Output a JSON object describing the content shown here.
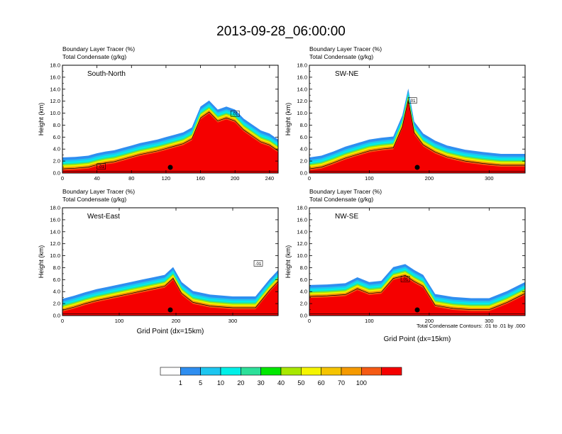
{
  "title": "2013-09-28_06:00:00",
  "colors": [
    "#ffffff",
    "#2f8ef0",
    "#1dc6f0",
    "#00f0e8",
    "#2ce09a",
    "#00e800",
    "#a8e800",
    "#f5f500",
    "#f5c400",
    "#f59a00",
    "#f55a14",
    "#f50000"
  ],
  "colorbar": {
    "levels": [
      "1",
      "5",
      "10",
      "20",
      "30",
      "40",
      "50",
      "60",
      "70",
      "100"
    ]
  },
  "contour_note": "Total Condensate Contours: .01 to .01 by .000",
  "chart_data": [
    {
      "type": "heatmap",
      "panel_label": "South-North",
      "title_line1": "Boundary Layer Tracer   (%)",
      "title_line2": "Total Condensate   (g/kg)",
      "ylabel": "Height (km)",
      "xlabel": "",
      "xlim": [
        0,
        250
      ],
      "ylim": [
        0,
        18
      ],
      "xticks": [
        "0",
        "40",
        "80",
        "120",
        "160",
        "200",
        "240"
      ],
      "xtick_values": [
        0,
        40,
        80,
        120,
        160,
        200,
        240
      ],
      "yticks": [
        "0.0",
        "2.0",
        "4.0",
        "6.0",
        "8.0",
        "10.0",
        "12.0",
        "14.0",
        "16.0",
        "18.0"
      ],
      "marker_x": 125,
      "contour_labels": [
        {
          "x": 45,
          "y": 1.0,
          "text": ".01"
        },
        {
          "x": 200,
          "y": 9.8,
          "text": ".01"
        }
      ],
      "tracer_profile": [
        {
          "x": 0,
          "h": 1.0,
          "c": 9
        },
        {
          "x": 15,
          "h": 1.1,
          "c": 9
        },
        {
          "x": 30,
          "h": 1.3,
          "c": 9
        },
        {
          "x": 40,
          "h": 1.7,
          "c": 10
        },
        {
          "x": 50,
          "h": 2.0,
          "c": 10
        },
        {
          "x": 60,
          "h": 2.2,
          "c": 10
        },
        {
          "x": 70,
          "h": 2.6,
          "c": 10
        },
        {
          "x": 80,
          "h": 3.0,
          "c": 10
        },
        {
          "x": 90,
          "h": 3.4,
          "c": 10
        },
        {
          "x": 100,
          "h": 3.7,
          "c": 10
        },
        {
          "x": 110,
          "h": 4.0,
          "c": 10
        },
        {
          "x": 120,
          "h": 4.4,
          "c": 10
        },
        {
          "x": 130,
          "h": 4.8,
          "c": 10
        },
        {
          "x": 140,
          "h": 5.2,
          "c": 10
        },
        {
          "x": 150,
          "h": 6.0,
          "c": 10
        },
        {
          "x": 160,
          "h": 9.5,
          "c": 10
        },
        {
          "x": 170,
          "h": 10.5,
          "c": 10
        },
        {
          "x": 180,
          "h": 9.0,
          "c": 10
        },
        {
          "x": 190,
          "h": 9.5,
          "c": 10
        },
        {
          "x": 200,
          "h": 9.0,
          "c": 10
        },
        {
          "x": 210,
          "h": 7.5,
          "c": 10
        },
        {
          "x": 220,
          "h": 6.5,
          "c": 10
        },
        {
          "x": 230,
          "h": 5.5,
          "c": 9
        },
        {
          "x": 240,
          "h": 5.0,
          "c": 9
        },
        {
          "x": 250,
          "h": 4.0,
          "c": 9
        }
      ]
    },
    {
      "type": "heatmap",
      "panel_label": "SW-NE",
      "title_line1": "Boundary Layer Tracer   (%)",
      "title_line2": "Total Condensate   (g/kg)",
      "ylabel": "Height (km)",
      "xlabel": "",
      "xlim": [
        0,
        360
      ],
      "ylim": [
        0,
        18
      ],
      "xticks": [
        "0",
        "100",
        "200",
        "300"
      ],
      "xtick_values": [
        0,
        100,
        200,
        300
      ],
      "yticks": [
        "0.0",
        "2.0",
        "4.0",
        "6.0",
        "8.0",
        "10.0",
        "12.0",
        "14.0",
        "16.0",
        "18.0"
      ],
      "marker_x": 180,
      "contour_labels": [
        {
          "x": 172,
          "y": 12.0,
          "text": ".01"
        }
      ],
      "tracer_profile": [
        {
          "x": 0,
          "h": 1.0,
          "c": 10
        },
        {
          "x": 20,
          "h": 1.3,
          "c": 10
        },
        {
          "x": 40,
          "h": 2.0,
          "c": 10
        },
        {
          "x": 60,
          "h": 2.8,
          "c": 10
        },
        {
          "x": 80,
          "h": 3.4,
          "c": 10
        },
        {
          "x": 100,
          "h": 4.0,
          "c": 10
        },
        {
          "x": 120,
          "h": 4.3,
          "c": 10
        },
        {
          "x": 140,
          "h": 4.5,
          "c": 10
        },
        {
          "x": 155,
          "h": 8.0,
          "c": 10
        },
        {
          "x": 165,
          "h": 12.5,
          "c": 10
        },
        {
          "x": 175,
          "h": 7.0,
          "c": 10
        },
        {
          "x": 190,
          "h": 5.0,
          "c": 10
        },
        {
          "x": 210,
          "h": 3.8,
          "c": 10
        },
        {
          "x": 230,
          "h": 3.0,
          "c": 10
        },
        {
          "x": 260,
          "h": 2.3,
          "c": 10
        },
        {
          "x": 290,
          "h": 1.9,
          "c": 10
        },
        {
          "x": 320,
          "h": 1.6,
          "c": 10
        },
        {
          "x": 360,
          "h": 1.6,
          "c": 10
        }
      ]
    },
    {
      "type": "heatmap",
      "panel_label": "West-East",
      "title_line1": "Boundary Layer Tracer   (%)",
      "title_line2": "Total Condensate   (g/kg)",
      "ylabel": "Height (km)",
      "xlabel": "Grid Point (dx=15km)",
      "xlim": [
        0,
        380
      ],
      "ylim": [
        0,
        18
      ],
      "xticks": [
        "0",
        "100",
        "200",
        "300"
      ],
      "xtick_values": [
        0,
        100,
        200,
        300
      ],
      "yticks": [
        "0.0",
        "2.0",
        "4.0",
        "6.0",
        "8.0",
        "10.0",
        "12.0",
        "14.0",
        "16.0",
        "18.0"
      ],
      "marker_x": 190,
      "contour_labels": [
        {
          "x": 345,
          "y": 8.6,
          "text": ".01"
        }
      ],
      "tracer_profile": [
        {
          "x": 0,
          "h": 1.2,
          "c": 10
        },
        {
          "x": 20,
          "h": 1.7,
          "c": 10
        },
        {
          "x": 40,
          "h": 2.3,
          "c": 10
        },
        {
          "x": 60,
          "h": 2.8,
          "c": 10
        },
        {
          "x": 80,
          "h": 3.2,
          "c": 10
        },
        {
          "x": 100,
          "h": 3.6,
          "c": 10
        },
        {
          "x": 120,
          "h": 4.0,
          "c": 10
        },
        {
          "x": 140,
          "h": 4.4,
          "c": 10
        },
        {
          "x": 160,
          "h": 4.8,
          "c": 10
        },
        {
          "x": 180,
          "h": 5.2,
          "c": 10
        },
        {
          "x": 195,
          "h": 6.5,
          "c": 10
        },
        {
          "x": 210,
          "h": 4.0,
          "c": 10
        },
        {
          "x": 230,
          "h": 2.5,
          "c": 10
        },
        {
          "x": 260,
          "h": 1.9,
          "c": 10
        },
        {
          "x": 300,
          "h": 1.6,
          "c": 10
        },
        {
          "x": 340,
          "h": 1.6,
          "c": 10
        },
        {
          "x": 365,
          "h": 4.5,
          "c": 10
        },
        {
          "x": 380,
          "h": 6.0,
          "c": 10
        }
      ]
    },
    {
      "type": "heatmap",
      "panel_label": "NW-SE",
      "title_line1": "Boundary Layer Tracer   (%)",
      "title_line2": "Total Condensate   (g/kg)",
      "ylabel": "Height (km)",
      "xlabel": "Grid Point (dx=15km)",
      "xlim": [
        0,
        360
      ],
      "ylim": [
        0,
        18
      ],
      "xticks": [
        "0",
        "100",
        "200",
        "300"
      ],
      "xtick_values": [
        0,
        100,
        200,
        300
      ],
      "yticks": [
        "0.0",
        "2.0",
        "4.0",
        "6.0",
        "8.0",
        "10.0",
        "12.0",
        "14.0",
        "16.0",
        "18.0"
      ],
      "marker_x": 180,
      "contour_labels": [
        {
          "x": 160,
          "y": 6.0,
          "text": ".01"
        }
      ],
      "tracer_profile": [
        {
          "x": 0,
          "h": 3.5,
          "c": 10
        },
        {
          "x": 30,
          "h": 3.6,
          "c": 10
        },
        {
          "x": 60,
          "h": 3.8,
          "c": 10
        },
        {
          "x": 80,
          "h": 4.8,
          "c": 10
        },
        {
          "x": 100,
          "h": 4.0,
          "c": 10
        },
        {
          "x": 120,
          "h": 4.2,
          "c": 10
        },
        {
          "x": 140,
          "h": 6.5,
          "c": 10
        },
        {
          "x": 160,
          "h": 7.0,
          "c": 10
        },
        {
          "x": 175,
          "h": 6.0,
          "c": 10
        },
        {
          "x": 190,
          "h": 5.2,
          "c": 10
        },
        {
          "x": 210,
          "h": 2.0,
          "c": 10
        },
        {
          "x": 240,
          "h": 1.5,
          "c": 10
        },
        {
          "x": 270,
          "h": 1.3,
          "c": 10
        },
        {
          "x": 300,
          "h": 1.3,
          "c": 10
        },
        {
          "x": 330,
          "h": 2.5,
          "c": 10
        },
        {
          "x": 350,
          "h": 3.5,
          "c": 10
        },
        {
          "x": 360,
          "h": 4.0,
          "c": 10
        }
      ]
    }
  ]
}
